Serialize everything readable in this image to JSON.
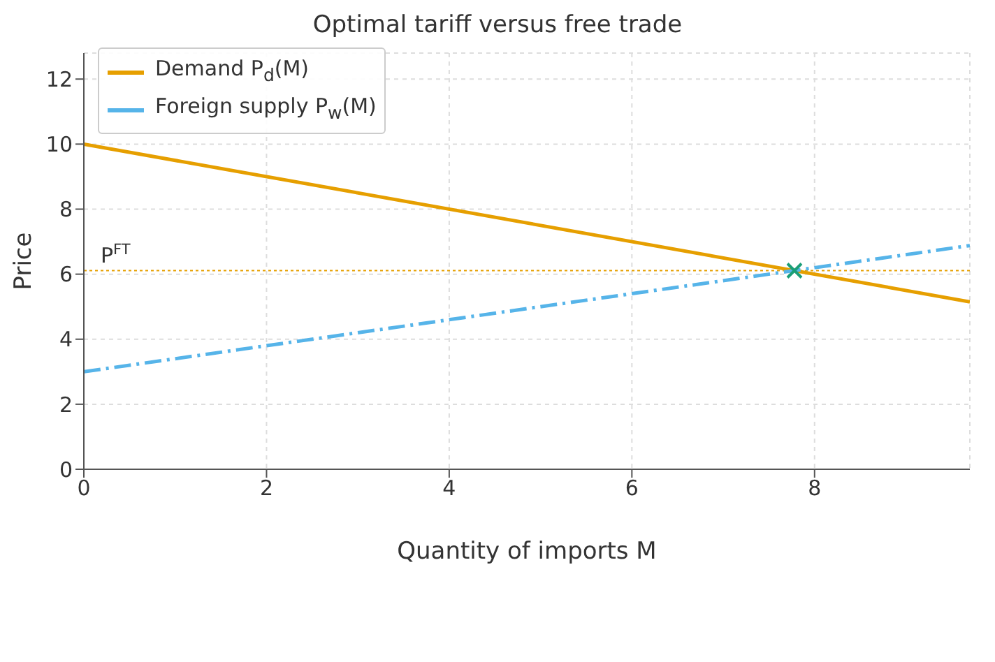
{
  "chart_data": {
    "type": "line",
    "title": "Optimal tariff versus free trade",
    "xlabel": "Quantity of imports M",
    "ylabel": "Price",
    "xlim": [
      0,
      9.7
    ],
    "ylim": [
      0,
      12.8
    ],
    "xticks": [
      0,
      2,
      4,
      6,
      8
    ],
    "yticks": [
      0,
      2,
      4,
      6,
      8,
      10,
      12
    ],
    "grid": true,
    "legend": "top left",
    "series": [
      {
        "name": "Demand P$_{d}$(M)",
        "color": "#e69f00",
        "x": [
          0,
          9.7
        ],
        "values": [
          10,
          5.15
        ],
        "line_style": "solid",
        "marker": "none"
      },
      {
        "name": "Foreign supply P$_{w}$(M)",
        "color": "#56b4e9",
        "x": [
          0,
          9.7
        ],
        "values": [
          3,
          6.88
        ],
        "line_style": "dashed",
        "marker": "none"
      },
      {
        "type": "scatter",
        "color": "#1b9e77",
        "x": [
          7.78
        ],
        "values": [
          6.11
        ],
        "marker": "cross"
      }
    ],
    "ref_lines": [
      {
        "axis": "y",
        "value": 6.11,
        "label": "P$^{FT}$",
        "color": "#e69f00",
        "line_style": "dotted"
      }
    ]
  }
}
